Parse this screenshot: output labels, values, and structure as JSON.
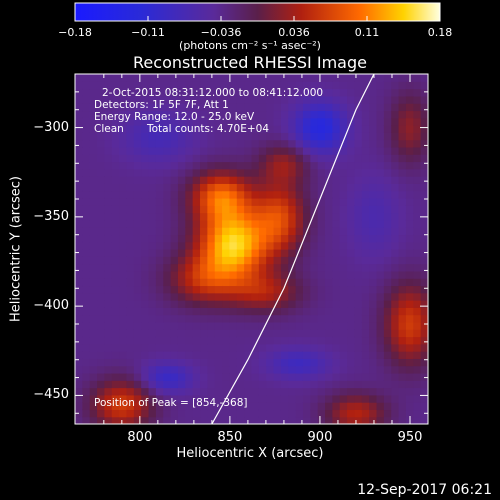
{
  "chart_data": {
    "type": "heatmap",
    "title": "Reconstructed RHESSI Image",
    "xlabel": "Heliocentric X (arcsec)",
    "ylabel": "Heliocentric Y (arcsec)",
    "xlim": [
      764,
      960
    ],
    "ylim": [
      -466,
      -270
    ],
    "xticks": [
      800,
      850,
      900,
      950
    ],
    "yticks": [
      -300,
      -350,
      -400,
      -450
    ],
    "colorbar": {
      "ticks": [
        "-0.18",
        "-0.11",
        "-0.036",
        "0.036",
        "0.11",
        "0.18"
      ],
      "range": [
        -0.18,
        0.18
      ],
      "unit": "(photons cm⁻² s⁻¹ asec⁻²)"
    },
    "annotations": {
      "time": "2-Oct-2015 08:31:12.000 to 08:41:12.000",
      "detectors": "Detectors: 1F 5F 7F, Att 1",
      "energy": "Energy Range: 12.0 - 25.0 keV",
      "method": "Clean",
      "counts": "Total counts: 4.70E+04",
      "peak": "Position of Peak = [854,-368]"
    },
    "peak": [
      854,
      -368
    ],
    "limb_curve": [
      [
        840,
        -466
      ],
      [
        860,
        -430
      ],
      [
        880,
        -390
      ],
      [
        900,
        -340
      ],
      [
        920,
        -290
      ],
      [
        930,
        -270
      ]
    ],
    "sources": [
      {
        "x": 852,
        "y": -365,
        "amp": 0.18,
        "sx": 14,
        "sy": 14
      },
      {
        "x": 845,
        "y": -338,
        "amp": 0.12,
        "sx": 12,
        "sy": 10
      },
      {
        "x": 878,
        "y": -350,
        "amp": 0.1,
        "sx": 10,
        "sy": 14
      },
      {
        "x": 835,
        "y": -385,
        "amp": 0.08,
        "sx": 14,
        "sy": 10
      },
      {
        "x": 870,
        "y": -392,
        "amp": 0.07,
        "sx": 14,
        "sy": 8
      },
      {
        "x": 880,
        "y": -320,
        "amp": 0.06,
        "sx": 10,
        "sy": 8
      },
      {
        "x": 790,
        "y": -455,
        "amp": 0.1,
        "sx": 12,
        "sy": 10
      },
      {
        "x": 950,
        "y": -410,
        "amp": 0.1,
        "sx": 10,
        "sy": 16
      },
      {
        "x": 950,
        "y": -300,
        "amp": 0.06,
        "sx": 8,
        "sy": 14
      },
      {
        "x": 920,
        "y": -460,
        "amp": 0.08,
        "sx": 12,
        "sy": 8
      },
      {
        "x": 900,
        "y": -300,
        "amp": -0.09,
        "sx": 10,
        "sy": 10
      },
      {
        "x": 815,
        "y": -440,
        "amp": -0.06,
        "sx": 10,
        "sy": 6
      },
      {
        "x": 888,
        "y": -432,
        "amp": -0.05,
        "sx": 12,
        "sy": 6
      },
      {
        "x": 810,
        "y": -305,
        "amp": -0.04,
        "sx": 14,
        "sy": 10
      },
      {
        "x": 930,
        "y": -350,
        "amp": -0.03,
        "sx": 10,
        "sy": 16
      }
    ],
    "background": -0.035
  },
  "footer": {
    "date": "12-Sep-2017 06:21"
  }
}
